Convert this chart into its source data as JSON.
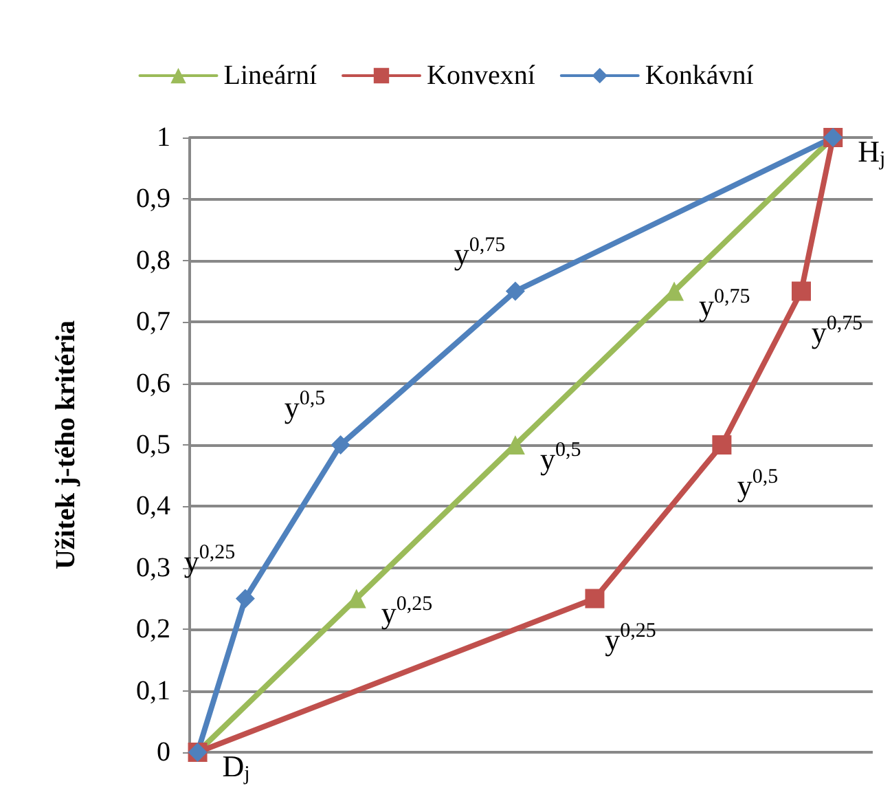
{
  "chart_data": {
    "type": "line",
    "ylabel": "Užitek j-tého kritéria",
    "ylim": [
      0,
      1
    ],
    "categories": [
      null,
      null,
      null,
      null,
      null,
      null,
      null,
      null,
      null,
      null,
      null,
      null,
      null,
      null,
      null,
      null,
      null,
      null,
      null,
      null,
      null,
      null,
      null,
      null,
      null,
      null,
      null,
      null,
      null,
      null,
      null,
      null,
      null,
      null,
      null,
      null,
      null,
      null,
      null,
      null,
      null,
      null,
      null
    ],
    "yticks": [
      0,
      {
        "value": 0.1,
        "label": "0,1"
      },
      {
        "value": 0.2,
        "label": "0,2"
      },
      {
        "value": 0.3,
        "label": "0,3"
      },
      {
        "value": 0.4,
        "label": "0,4"
      },
      {
        "value": 0.5,
        "label": "0,5"
      },
      {
        "value": 0.6,
        "label": "0,6"
      },
      {
        "value": 0.7,
        "label": "0,7"
      },
      {
        "value": 0.8,
        "label": "0,8"
      },
      {
        "value": 0.9,
        "label": "0,9"
      },
      1
    ],
    "tick_labels": "y",
    "grid": "y",
    "legend": "top",
    "series": [
      {
        "name": "Lineární",
        "color": "#9bbb59",
        "marker": "triangle",
        "values": [
          0,
          null,
          null,
          null,
          null,
          null,
          null,
          null,
          null,
          null,
          0.25,
          null,
          null,
          null,
          null,
          null,
          null,
          null,
          null,
          null,
          0.5,
          null,
          null,
          null,
          null,
          null,
          null,
          null,
          null,
          null,
          0.75,
          null,
          null,
          null,
          null,
          null,
          null,
          null,
          null,
          null,
          1,
          null,
          null
        ],
        "value_labels": [
          null,
          null,
          null,
          null,
          null,
          null,
          null,
          null,
          null,
          null,
          "y$^{0,25}$",
          null,
          null,
          null,
          null,
          null,
          null,
          null,
          null,
          null,
          "y$^{0,5}$",
          null,
          null,
          null,
          null,
          null,
          null,
          null,
          null,
          null,
          "y$^{0,75}$",
          null,
          null,
          null,
          null,
          null,
          null,
          null,
          null,
          null,
          null,
          null,
          null
        ]
      },
      {
        "name": "Konvexní",
        "color": "#c0504d",
        "marker": "square",
        "values": [
          0,
          null,
          null,
          null,
          null,
          null,
          null,
          null,
          null,
          null,
          null,
          null,
          null,
          null,
          null,
          null,
          null,
          null,
          null,
          null,
          null,
          null,
          null,
          null,
          null,
          0.25,
          null,
          null,
          null,
          null,
          null,
          null,
          null,
          0.5,
          null,
          null,
          null,
          null,
          0.75,
          null,
          1,
          null,
          null
        ],
        "value_labels": [
          "D$_{j}$",
          null,
          null,
          null,
          null,
          null,
          null,
          null,
          null,
          null,
          null,
          null,
          null,
          null,
          null,
          null,
          null,
          null,
          null,
          null,
          null,
          null,
          null,
          null,
          null,
          "y$^{0,25}$",
          null,
          null,
          null,
          null,
          null,
          null,
          null,
          "y$^{0,5}$",
          null,
          null,
          null,
          null,
          "y$^{0,75}$",
          null,
          "H$_{j}$",
          null,
          null
        ]
      },
      {
        "name": "Konkávní",
        "color": "#4f81bd",
        "marker": "diamond",
        "values": [
          0,
          null,
          null,
          0.25,
          null,
          null,
          null,
          null,
          null,
          0.5,
          null,
          null,
          null,
          null,
          null,
          null,
          null,
          null,
          null,
          null,
          0.75,
          null,
          null,
          null,
          null,
          null,
          null,
          null,
          null,
          null,
          null,
          null,
          null,
          null,
          null,
          null,
          null,
          null,
          null,
          null,
          1,
          null,
          null
        ],
        "value_labels": [
          null,
          null,
          null,
          "y$^{0,25}$",
          null,
          null,
          null,
          null,
          null,
          "y$^{0,5}$",
          null,
          null,
          null,
          null,
          null,
          null,
          null,
          null,
          null,
          null,
          "y$^{0,75}$",
          null,
          null,
          null,
          null,
          null,
          null,
          null,
          null,
          null,
          null,
          null,
          null,
          null,
          null,
          null,
          null,
          null,
          null,
          null,
          null,
          null,
          null
        ]
      }
    ]
  }
}
